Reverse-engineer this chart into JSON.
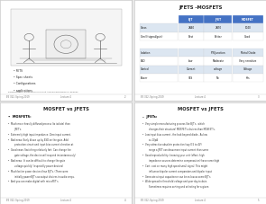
{
  "bg_color": "#e8e8e8",
  "panel_bg": "#ffffff",
  "title_top_right": "JFETS -MOSFETS",
  "title_bottom_left": "MOSFET vs JFETS",
  "title_bottom_right": "MOSFET vs JFETS",
  "header_color": "#4472c4",
  "row_colors": [
    "#dce6f1",
    "#ffffff"
  ],
  "col_labels": [
    "",
    "BJT",
    "JFET",
    "MOSFET"
  ],
  "table_rows": [
    [
      "Cross",
      "2N40",
      "2N70",
      "1040"
    ],
    [
      "Gm/I (signal/gain)",
      "Best",
      "Better",
      "Good"
    ],
    [
      "",
      "",
      "",
      ""
    ],
    [
      "Isolation",
      "",
      "PN Junction",
      "Metal Oxide"
    ],
    [
      "ESD",
      "Low",
      "Moderate",
      "Very sensitive"
    ],
    [
      "Control",
      "Current",
      "voltage",
      "Voltage"
    ],
    [
      "Power",
      "YES",
      "No",
      "Yes"
    ]
  ],
  "bullet_top_left": [
    "FETS",
    "Spec sheets",
    "Configurations",
    "applications"
  ],
  "ref_text": "Recommended: Microelectronics Circuit Analysis and Design, D. Neamen",
  "footer_left": "EE 362, Spring 2019",
  "footer_center": "Lecture 4",
  "page_nums": [
    "2",
    "3",
    "4",
    "5"
  ],
  "mosfet_bullets": [
    "Much more heavily diffused process (to isolate) than JFET's",
    "Extremely high input impedance. Zero input current.",
    "Bad news: Early blown up by ESD on the gate. Add protection circuit and input bias current direction at level comparable to JFET's",
    "Good news: Switching relatively fast. Can change the gate voltage, the device will respond instantaneously! Essentially change in Gate impedance",
    "Bad news : It can be difficult to change the gate voltage quickly! (especially power devices)",
    "Much better power devices than BJT's. (There were initially power BJT's as output devices in audio amps. Not many biITs up.)",
    "And you can make digital with microFET's"
  ],
  "jfet_bullets": [
    "Very simple manufacturing process like BJT's - which changes their structure! MOSFET's devices than MOSFET's.",
    "Low input bias current - the leak beyond diode - As low as 10pA",
    "Very attractive absolute protection (say 0.5 to 4V) range a JFET can draw more input current than some Bipolar rail-to-rail",
    "Good reproducibility: knowing your unit (offset, high impedance sources determine compensation) have some high medium impedance because of low noise and capacitance compared to MOSFET's",
    "Cost: cost on many high speed small signal. This might influence bipolar current comparators and bipolar input op amps. See data sheets of LMC (input) CMP8 series and compare to other recent options",
    "Generate a input capacitance can be as low as some BJT's",
    "Wide spread in threshold voltage and poor sky-to-date. Sometimes requires sorting and selecting for a given circuit."
  ]
}
